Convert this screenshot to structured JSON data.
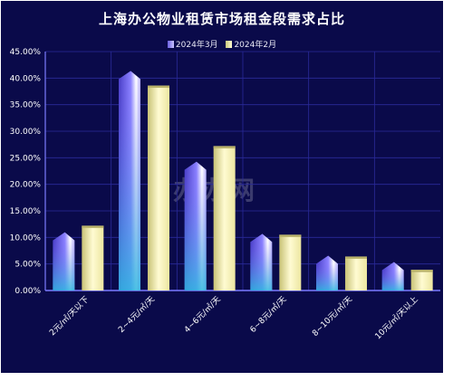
{
  "chart_data": {
    "type": "bar",
    "title": "上海办公物业租赁市场租金段需求占比",
    "categories": [
      "2元/㎡/天以下",
      "2~4元/㎡/天",
      "4~6元/㎡/天",
      "6~8元/㎡/天",
      "8~10元/㎡/天",
      "10元/㎡/天以上"
    ],
    "series": [
      {
        "name": "2024年3月",
        "values": [
          10.2,
          40.6,
          23.5,
          9.9,
          5.8,
          4.6
        ],
        "color": "#6f63e8"
      },
      {
        "name": "2024年2月",
        "values": [
          12.2,
          38.6,
          27.2,
          10.5,
          6.4,
          3.9
        ],
        "color": "#f3efb0"
      }
    ],
    "y_ticks": [
      "0.00%",
      "5.00%",
      "10.00%",
      "15.00%",
      "20.00%",
      "25.00%",
      "30.00%",
      "35.00%",
      "40.00%",
      "45.00%"
    ],
    "ylim": [
      0,
      45
    ],
    "grid": true,
    "legend_position": "top-center"
  },
  "watermark": "办办网",
  "colors": {
    "background": "#0a0a4a",
    "grid": "#2a2a9a",
    "axis": "#7b7bff",
    "text": "#ffffff"
  }
}
